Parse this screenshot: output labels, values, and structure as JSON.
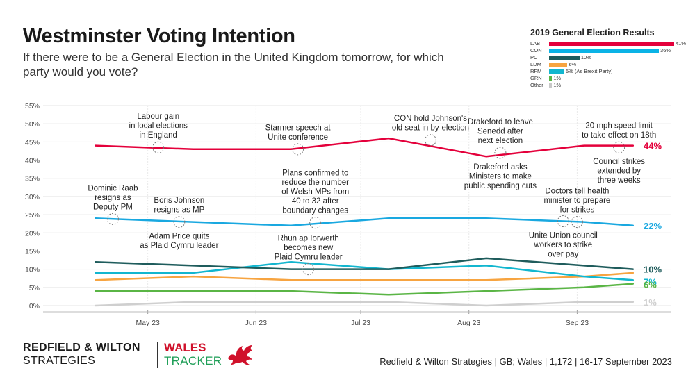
{
  "header": {
    "title": "Westminster Voting Intention",
    "subtitle": "If there were to be a General Election in the United Kingdom tomorrow, for which party would you vote?"
  },
  "results": {
    "title": "2019 General Election Results",
    "max": 41,
    "items": [
      {
        "party": "LAB",
        "value": 41,
        "label": "41%",
        "color": "#e4003b"
      },
      {
        "party": "CON",
        "value": 36,
        "label": "36%",
        "color": "#0ab3e6"
      },
      {
        "party": "PC",
        "value": 10,
        "label": "10%",
        "color": "#1f5c5c"
      },
      {
        "party": "LDM",
        "value": 6,
        "label": "6%",
        "color": "#f7a440"
      },
      {
        "party": "RFM",
        "value": 5,
        "label": "5% (As Brexit Party)",
        "color": "#12b6cf"
      },
      {
        "party": "GRN",
        "value": 1,
        "label": "1%",
        "color": "#5ab545"
      },
      {
        "party": "Other",
        "value": 1,
        "label": "1%",
        "color": "#c8c8c8"
      }
    ]
  },
  "chart_data": {
    "type": "line",
    "x": [
      "2023-04-16",
      "2023-05-14",
      "2023-06-11",
      "2023-07-09",
      "2023-08-06",
      "2023-09-03",
      "2023-09-17"
    ],
    "x_ticks": [
      {
        "date": "2023-05-01",
        "label": "May 23"
      },
      {
        "date": "2023-06-01",
        "label": "Jun 23"
      },
      {
        "date": "2023-07-01",
        "label": "Jul 23"
      },
      {
        "date": "2023-08-01",
        "label": "Aug 23"
      },
      {
        "date": "2023-09-01",
        "label": "Sep 23"
      }
    ],
    "xlim": [
      "2023-04-01",
      "2023-09-28"
    ],
    "ylim": [
      0,
      55
    ],
    "y_ticks": [
      0,
      5,
      10,
      15,
      20,
      25,
      30,
      35,
      40,
      45,
      50,
      55
    ],
    "y_tick_labels": [
      "0%",
      "5%",
      "10%",
      "15%",
      "20%",
      "25%",
      "30%",
      "35%",
      "40%",
      "45%",
      "50%",
      "55%"
    ],
    "grid": true,
    "series": [
      {
        "name": "LAB",
        "color": "#e4003b",
        "values": [
          44,
          43,
          43,
          46,
          41,
          44,
          44
        ],
        "end_label": "44%"
      },
      {
        "name": "CON",
        "color": "#19a8e0",
        "values": [
          24,
          23,
          22,
          24,
          24,
          23,
          22
        ],
        "end_label": "22%"
      },
      {
        "name": "PC",
        "color": "#1f5c5c",
        "values": [
          12,
          11,
          10,
          10,
          13,
          11,
          10
        ],
        "end_label": "10%"
      },
      {
        "name": "RFM",
        "color": "#12b6cf",
        "values": [
          9,
          9,
          12,
          10,
          11,
          8,
          7
        ],
        "end_label": "7%"
      },
      {
        "name": "LDM",
        "color": "#f7a440",
        "values": [
          7,
          8,
          7,
          7,
          7,
          8,
          9
        ],
        "end_label": ""
      },
      {
        "name": "GRN",
        "color": "#5ab545",
        "values": [
          4,
          4,
          4,
          3,
          4,
          5,
          6
        ],
        "end_label": "6%"
      },
      {
        "name": "Other",
        "color": "#cfcfcf",
        "values": [
          0,
          1,
          1,
          1,
          0,
          1,
          1
        ],
        "end_label": "1%"
      }
    ],
    "annotations": [
      {
        "date": "2023-05-04",
        "value": 43.5,
        "lines": [
          "Labour gain",
          "in local elections",
          "in England"
        ],
        "position": "above"
      },
      {
        "date": "2023-06-13",
        "value": 43,
        "lines": [
          "Starmer speech at",
          "Unite conference"
        ],
        "position": "above"
      },
      {
        "date": "2023-07-21",
        "value": 45.5,
        "lines": [
          "CON hold Johnson's",
          "old seat in by-election"
        ],
        "position": "above"
      },
      {
        "date": "2023-08-10",
        "value": 42,
        "lines": [
          "Drakeford to leave",
          "Senedd after",
          "next election"
        ],
        "position": "above"
      },
      {
        "date": "2023-08-10",
        "value": 42,
        "lines": [
          "Drakeford asks",
          "Ministers to make",
          "public spending cuts"
        ],
        "position": "below"
      },
      {
        "date": "2023-09-13",
        "value": 43.5,
        "lines": [
          "20 mph speed limit",
          "to take effect on 18th"
        ],
        "position": "above"
      },
      {
        "date": "2023-09-13",
        "value": 43.5,
        "lines": [
          "Council strikes",
          "extended by",
          "three weeks"
        ],
        "position": "below"
      },
      {
        "date": "2023-04-21",
        "value": 23.8,
        "lines": [
          "Dominic Raab",
          "resigns as",
          "Deputy PM"
        ],
        "position": "above"
      },
      {
        "date": "2023-05-10",
        "value": 23,
        "lines": [
          "Boris Johnson",
          "resigns as MP"
        ],
        "position": "above"
      },
      {
        "date": "2023-05-10",
        "value": 23,
        "lines": [
          "Adam Price quits",
          "as Plaid Cymru leader"
        ],
        "position": "below"
      },
      {
        "date": "2023-06-18",
        "value": 22.8,
        "lines": [
          "Plans confirmed to",
          "reduce the number",
          "of Welsh MPs from",
          "40 to 32 after",
          "boundary changes"
        ],
        "position": "above"
      },
      {
        "date": "2023-06-16",
        "value": 10,
        "lines": [
          "Rhun ap Iorwerth",
          "becomes new",
          "Plaid Cymru leader"
        ],
        "position": "above"
      },
      {
        "date": "2023-09-01",
        "value": 23,
        "lines": [
          "Doctors tell health",
          "minister to prepare",
          "for strikes"
        ],
        "position": "above"
      },
      {
        "date": "2023-08-28",
        "value": 23.2,
        "lines": [
          "Unite Union council",
          "workers to strike",
          "over pay"
        ],
        "position": "below"
      }
    ]
  },
  "footer": {
    "brand_name": "REDFIELD & WILTON",
    "brand_sub": "STRATEGIES",
    "tracker_line1": "WALES",
    "tracker_line2": "TRACKER",
    "source": "Redfield & Wilton Strategies | GB; Wales | 1,172 | 16-17 September 2023"
  }
}
